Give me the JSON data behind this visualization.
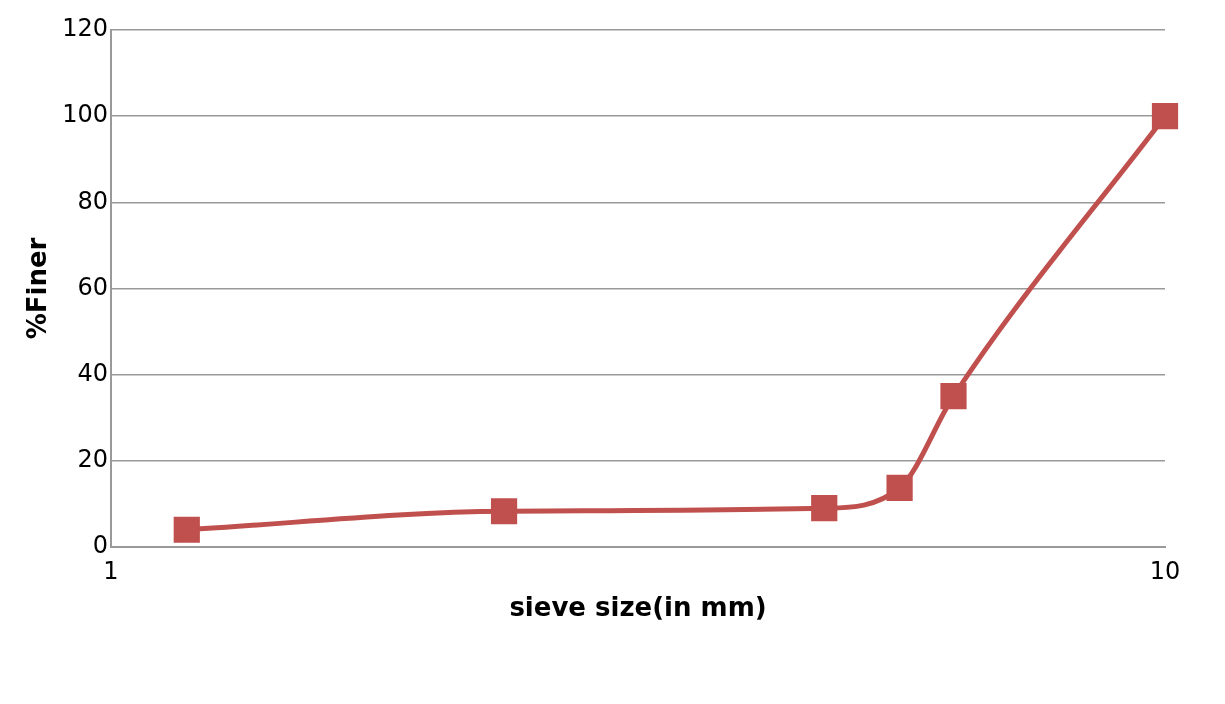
{
  "chart_data": {
    "type": "line",
    "xlabel": "sieve size(in mm)",
    "ylabel": "%Finer",
    "x": [
      1.18,
      2.36,
      4.75,
      5.6,
      6.3,
      10
    ],
    "series": [
      {
        "color": "#c0504d",
        "values": [
          4,
          8.3,
          9,
          13.7,
          35,
          100
        ]
      }
    ],
    "log": "x",
    "xlim": [
      1,
      10
    ],
    "xticks": [
      1,
      10
    ],
    "ylim": [
      0,
      120
    ],
    "yticks": [
      0,
      20,
      40,
      60,
      80,
      100,
      120
    ],
    "grid": "y",
    "legend": false,
    "marker": "square",
    "line_style": "solid"
  }
}
